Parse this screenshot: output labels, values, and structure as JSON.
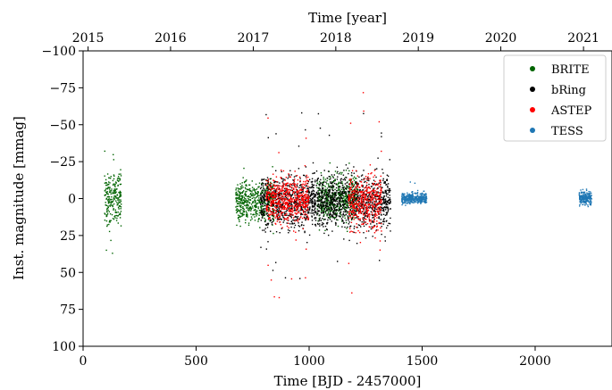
{
  "chart_data": {
    "type": "scatter",
    "xlabel": "Time [BJD - 2457000]",
    "ylabel": "Inst. magnitude [mmag]",
    "top_xlabel": "Time [year]",
    "xlim": [
      0,
      2340
    ],
    "ylim": [
      100,
      -100
    ],
    "y_inverted": true,
    "x_ticks": [
      0,
      500,
      1000,
      1500,
      2000
    ],
    "y_ticks": [
      -100,
      -75,
      -50,
      -25,
      0,
      25,
      50,
      75,
      100
    ],
    "y_tick_labels": [
      "−100",
      "−75",
      "−50",
      "−25",
      "0",
      "25",
      "50",
      "75",
      "100"
    ],
    "top_ticks": [
      {
        "label": "2015",
        "x": 22
      },
      {
        "label": "2016",
        "x": 387
      },
      {
        "label": "2017",
        "x": 753
      },
      {
        "label": "2018",
        "x": 1118
      },
      {
        "label": "2019",
        "x": 1483
      },
      {
        "label": "2020",
        "x": 1848
      },
      {
        "label": "2021",
        "x": 2214
      }
    ],
    "legend_position": "top-right",
    "grid": false,
    "series": [
      {
        "name": "BRITE",
        "color": "#006400",
        "segments": [
          {
            "x": [
              95,
              170
            ],
            "y_core": [
              -22,
              22
            ],
            "y_outlier": [
              -33,
              40
            ]
          },
          {
            "x": [
              675,
              845
            ],
            "y_core": [
              -15,
              18
            ],
            "y_outlier": [
              -25,
              30
            ]
          },
          {
            "x": [
              1035,
              1215
            ],
            "y_core": [
              -18,
              18
            ],
            "y_outlier": [
              -25,
              25
            ]
          }
        ]
      },
      {
        "name": "bRing",
        "color": "#000000",
        "segments": [
          {
            "x": [
              785,
              1360
            ],
            "y_core": [
              -20,
              25
            ],
            "y_outlier": [
              -60,
              55
            ]
          }
        ]
      },
      {
        "name": "ASTEP",
        "color": "#ff0000",
        "segments": [
          {
            "x": [
              810,
              1000
            ],
            "y_core": [
              -18,
              20
            ],
            "y_outlier": [
              -58,
              68
            ]
          },
          {
            "x": [
              1175,
              1320
            ],
            "y_core": [
              -20,
              25
            ],
            "y_outlier": [
              -75,
              72
            ]
          }
        ]
      },
      {
        "name": "TESS",
        "color": "#1f77b4",
        "segments": [
          {
            "x": [
              1410,
              1520
            ],
            "y_core": [
              -5,
              5
            ],
            "y_outlier": [
              -14,
              10
            ]
          },
          {
            "x": [
              2195,
              2250
            ],
            "y_core": [
              -6,
              6
            ],
            "y_outlier": [
              -8,
              8
            ]
          }
        ]
      }
    ]
  }
}
